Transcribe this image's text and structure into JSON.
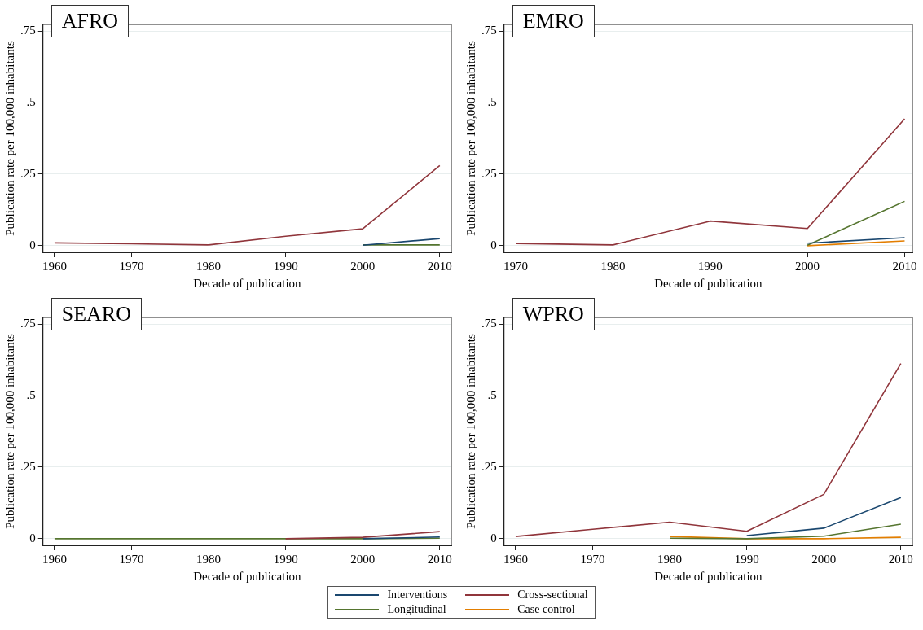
{
  "chart_data": [
    {
      "type": "line",
      "title": "AFRO",
      "xlabel": "Decade of publication",
      "ylabel": "Publication rate per 100,000 inhabitants",
      "x": [
        1960,
        1970,
        1980,
        1990,
        2000,
        2010
      ],
      "xlim": [
        1958.5,
        2011.5
      ],
      "xticks": [
        1960,
        1970,
        1980,
        1990,
        2000,
        2010
      ],
      "ylim": [
        -0.023,
        0.773
      ],
      "yticks": [
        {
          "value": 0,
          "label": "0"
        },
        {
          "value": 0.25,
          "label": ".25"
        },
        {
          "value": 0.5,
          "label": ".5"
        },
        {
          "value": 0.75,
          "label": ".75"
        }
      ],
      "grid": "y",
      "series": [
        {
          "color": "#1a476f",
          "values": [
            null,
            null,
            null,
            null,
            0.002,
            0.025
          ]
        },
        {
          "color": "#90353b",
          "values": [
            0.01,
            0.007,
            0.003,
            0.033,
            0.059,
            0.28
          ]
        },
        {
          "color": "#55752f",
          "values": [
            null,
            null,
            null,
            null,
            0.003,
            0.003
          ]
        }
      ]
    },
    {
      "type": "line",
      "title": "EMRO",
      "xlabel": "Decade of publication",
      "ylabel": "Publication rate per 100,000 inhabitants",
      "x": [
        1970,
        1980,
        1990,
        2000,
        2010
      ],
      "xlim": [
        1968.8,
        2010.8
      ],
      "xticks": [
        1970,
        1980,
        1990,
        2000,
        2010
      ],
      "ylim": [
        -0.023,
        0.773
      ],
      "yticks": [
        {
          "value": 0,
          "label": "0"
        },
        {
          "value": 0.25,
          "label": ".25"
        },
        {
          "value": 0.5,
          "label": ".5"
        },
        {
          "value": 0.75,
          "label": ".75"
        }
      ],
      "grid": "y",
      "series": [
        {
          "color": "#1a476f",
          "values": [
            null,
            null,
            null,
            0.009,
            0.028
          ]
        },
        {
          "color": "#90353b",
          "values": [
            0.008,
            0.003,
            0.086,
            0.06,
            0.443
          ]
        },
        {
          "color": "#55752f",
          "values": [
            null,
            null,
            null,
            0.002,
            0.155
          ]
        },
        {
          "color": "#e37e00",
          "values": [
            null,
            null,
            null,
            0,
            0.017
          ]
        }
      ]
    },
    {
      "type": "line",
      "title": "SEARO",
      "xlabel": "Decade of publication",
      "ylabel": "Publication rate per 100,000 inhabitants",
      "x": [
        1960,
        1970,
        1980,
        1990,
        2000,
        2010
      ],
      "xlim": [
        1958.5,
        2011.5
      ],
      "xticks": [
        1960,
        1970,
        1980,
        1990,
        2000,
        2010
      ],
      "ylim": [
        -0.023,
        0.773
      ],
      "yticks": [
        {
          "value": 0,
          "label": "0"
        },
        {
          "value": 0.25,
          "label": ".25"
        },
        {
          "value": 0.5,
          "label": ".5"
        },
        {
          "value": 0.75,
          "label": ".75"
        }
      ],
      "grid": "y",
      "series": [
        {
          "color": "#1a476f",
          "values": [
            null,
            null,
            null,
            null,
            0,
            0.006
          ]
        },
        {
          "color": "#90353b",
          "values": [
            null,
            null,
            null,
            0,
            0.005,
            0.025
          ]
        },
        {
          "color": "#55752f",
          "values": [
            0,
            0,
            0,
            0,
            0,
            0.002
          ]
        }
      ]
    },
    {
      "type": "line",
      "title": "WPRO",
      "xlabel": "Decade of publication",
      "ylabel": "Publication rate per 100,000 inhabitants",
      "x": [
        1960,
        1970,
        1980,
        1990,
        2000,
        2010
      ],
      "xlim": [
        1958.5,
        2011.5
      ],
      "xticks": [
        1960,
        1970,
        1980,
        1990,
        2000,
        2010
      ],
      "ylim": [
        -0.023,
        0.773
      ],
      "yticks": [
        {
          "value": 0,
          "label": "0"
        },
        {
          "value": 0.25,
          "label": ".25"
        },
        {
          "value": 0.5,
          "label": ".5"
        },
        {
          "value": 0.75,
          "label": ".75"
        }
      ],
      "grid": "y",
      "legend": "bottom",
      "series": [
        {
          "name": "Interventions",
          "color": "#1a476f",
          "values": [
            null,
            null,
            null,
            0.011,
            0.037,
            0.144
          ]
        },
        {
          "name": "Cross-sectional",
          "color": "#90353b",
          "values": [
            0.008,
            0.033,
            0.058,
            0.026,
            0.155,
            0.612
          ]
        },
        {
          "name": "Longitudinal",
          "color": "#55752f",
          "values": [
            null,
            null,
            0.002,
            0,
            0.009,
            0.051
          ]
        },
        {
          "name": "Case control",
          "color": "#e37e00",
          "values": [
            null,
            null,
            0.008,
            0,
            0,
            0.005
          ]
        }
      ]
    }
  ]
}
